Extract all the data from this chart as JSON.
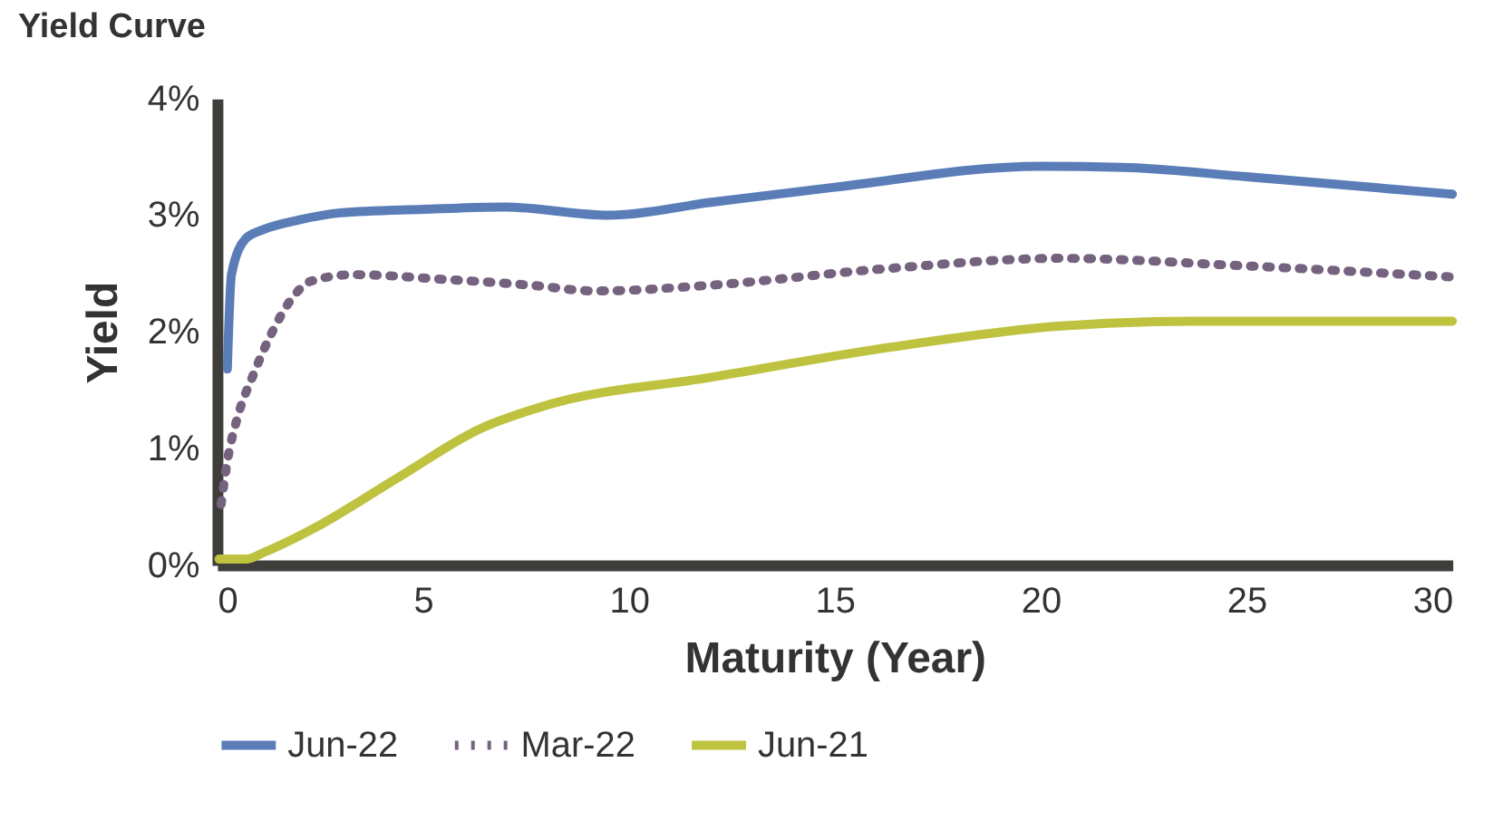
{
  "chart_data": {
    "type": "line",
    "title": "Yield Curve",
    "xlabel": "Maturity (Year)",
    "ylabel": "Yield",
    "xlim": [
      0,
      30
    ],
    "xticks": [
      0,
      5,
      10,
      15,
      20,
      25,
      30
    ],
    "ylim": [
      0,
      4
    ],
    "yticks": [
      {
        "value": 0,
        "label": "0%"
      },
      {
        "value": 1,
        "label": "1%"
      },
      {
        "value": 2,
        "label": "2%"
      },
      {
        "value": 3,
        "label": "3%"
      },
      {
        "value": 4,
        "label": "4%"
      }
    ],
    "grid": false,
    "legend": "bottom",
    "marker": "none",
    "series": [
      {
        "name": "Jun-22",
        "color": "#5a7db8",
        "line_style": "solid",
        "x": [
          0.25,
          0.35,
          0.7,
          1.15,
          2,
          3,
          5,
          7,
          9.5,
          12,
          15,
          20,
          22,
          25,
          30
        ],
        "values": [
          1.68,
          2.49,
          2.8,
          2.88,
          2.96,
          3.02,
          3.05,
          3.07,
          3.0,
          3.11,
          3.24,
          3.42,
          3.41,
          3.33,
          3.18
        ]
      },
      {
        "name": "Mar-22",
        "color": "#75627f",
        "line_style": "dotted",
        "x": [
          0.1,
          0.26,
          0.5,
          0.88,
          1.3,
          1.85,
          2.25,
          3.3,
          5.5,
          7.6,
          9.2,
          12,
          16.2,
          20.5,
          24.7,
          30
        ],
        "values": [
          0.52,
          0.91,
          1.27,
          1.63,
          1.97,
          2.3,
          2.43,
          2.49,
          2.45,
          2.4,
          2.35,
          2.4,
          2.54,
          2.63,
          2.57,
          2.47
        ]
      },
      {
        "name": "Jun-21",
        "color": "#bec23f",
        "line_style": "solid",
        "x": [
          0.05,
          0.7,
          1.15,
          2.33,
          4.4,
          6.4,
          8,
          12,
          16.4,
          20.5,
          23.7,
          30
        ],
        "values": [
          0.05,
          0.05,
          0.11,
          0.31,
          0.75,
          1.17,
          1.37,
          1.61,
          1.87,
          2.05,
          2.09,
          2.09
        ]
      }
    ]
  }
}
